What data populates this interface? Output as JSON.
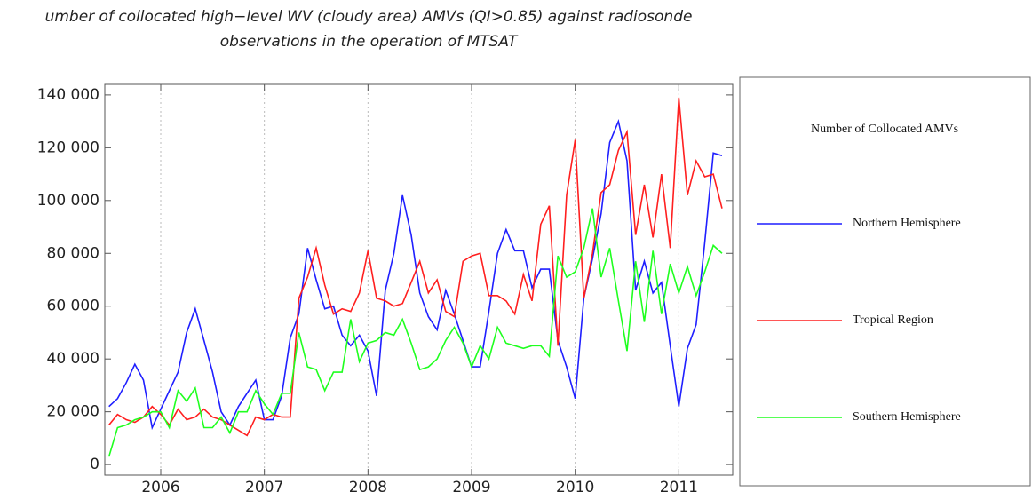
{
  "chart_data": {
    "type": "line",
    "title": "umber of collocated high−level WV (cloudy area) AMVs (QI>0.85) against radiosonde",
    "subtitle": "observations in the operation of MTSAT",
    "legend_title": "Number of Collocated AMVs",
    "legend": "right",
    "grid": "x",
    "x": [
      2005.5,
      2005.583,
      2005.667,
      2005.75,
      2005.833,
      2005.917,
      2006,
      2006.083,
      2006.167,
      2006.25,
      2006.333,
      2006.417,
      2006.5,
      2006.583,
      2006.667,
      2006.75,
      2006.833,
      2006.917,
      2007,
      2007.083,
      2007.167,
      2007.25,
      2007.333,
      2007.417,
      2007.5,
      2007.583,
      2007.667,
      2007.75,
      2007.833,
      2007.917,
      2008,
      2008.083,
      2008.167,
      2008.25,
      2008.333,
      2008.417,
      2008.5,
      2008.583,
      2008.667,
      2008.75,
      2008.833,
      2008.917,
      2009,
      2009.083,
      2009.167,
      2009.25,
      2009.333,
      2009.417,
      2009.5,
      2009.583,
      2009.667,
      2009.75,
      2009.833,
      2009.917,
      2010,
      2010.083,
      2010.167,
      2010.25,
      2010.333,
      2010.417,
      2010.5,
      2010.583,
      2010.667,
      2010.75,
      2010.833,
      2010.917,
      2011,
      2011.083,
      2011.167,
      2011.25,
      2011.333,
      2011.417
    ],
    "xlim": [
      2005.46,
      2011.52
    ],
    "xticks": [
      2006,
      2007,
      2008,
      2009,
      2010,
      2011
    ],
    "ylim": [
      -4000,
      144000
    ],
    "yticks": [
      0,
      {
        "value": 20000,
        "label": "20 000"
      },
      {
        "value": 40000,
        "label": "40 000"
      },
      {
        "value": 60000,
        "label": "60 000"
      },
      {
        "value": 80000,
        "label": "80 000"
      },
      {
        "value": 100000,
        "label": "100 000"
      },
      {
        "value": 120000,
        "label": "120 000"
      },
      {
        "value": 140000,
        "label": "140 000"
      }
    ],
    "series": [
      {
        "name": "Northern Hemisphere",
        "color": "#1f1fff",
        "values": [
          22000,
          25000,
          31000,
          38000,
          32000,
          14000,
          21000,
          28000,
          35000,
          50000,
          59000,
          47000,
          35000,
          20000,
          15000,
          22000,
          27000,
          32000,
          17000,
          17000,
          26000,
          48000,
          57000,
          82000,
          70000,
          59000,
          60000,
          49000,
          45000,
          49000,
          43000,
          26000,
          66000,
          80000,
          102000,
          87000,
          65000,
          56000,
          51000,
          66000,
          57000,
          47000,
          37000,
          37000,
          58000,
          80000,
          89000,
          81000,
          81000,
          67000,
          74000,
          74000,
          47000,
          37000,
          25000,
          63000,
          78000,
          95000,
          122000,
          130000,
          115000,
          66000,
          77000,
          65000,
          69000,
          45000,
          22000,
          44000,
          53000,
          84000,
          118000,
          117000
        ]
      },
      {
        "name": "Tropical Region",
        "color": "#ff1f1f",
        "values": [
          15000,
          19000,
          17000,
          16000,
          18000,
          22000,
          19000,
          15000,
          21000,
          17000,
          18000,
          21000,
          18000,
          17000,
          15000,
          13000,
          11000,
          18000,
          17000,
          19000,
          18000,
          18000,
          63000,
          71000,
          82000,
          68000,
          57000,
          59000,
          58000,
          65000,
          81000,
          63000,
          62000,
          60000,
          61000,
          69000,
          77000,
          65000,
          70000,
          58000,
          56000,
          77000,
          79000,
          80000,
          64000,
          64000,
          62000,
          57000,
          72000,
          62000,
          91000,
          98000,
          45000,
          102000,
          123000,
          63000,
          80000,
          103000,
          106000,
          119000,
          126000,
          87000,
          106000,
          86000,
          110000,
          82000,
          139000,
          102000,
          115000,
          109000,
          110000,
          97000
        ]
      },
      {
        "name": "Southern Hemisphere",
        "color": "#1fff1f",
        "values": [
          3000,
          14000,
          15000,
          17000,
          18000,
          20000,
          20000,
          14000,
          28000,
          24000,
          29000,
          14000,
          14000,
          18000,
          12000,
          20000,
          20000,
          28000,
          23000,
          19000,
          27000,
          27000,
          50000,
          37000,
          36000,
          28000,
          35000,
          35000,
          55000,
          39000,
          46000,
          47000,
          50000,
          49000,
          55000,
          46000,
          36000,
          37000,
          40000,
          47000,
          52000,
          46000,
          37000,
          45000,
          40000,
          52000,
          46000,
          45000,
          44000,
          45000,
          45000,
          41000,
          79000,
          71000,
          73000,
          82000,
          97000,
          71000,
          82000,
          62000,
          43000,
          77000,
          54000,
          81000,
          57000,
          76000,
          65000,
          75000,
          64000,
          73000,
          83000,
          80000
        ]
      }
    ]
  }
}
